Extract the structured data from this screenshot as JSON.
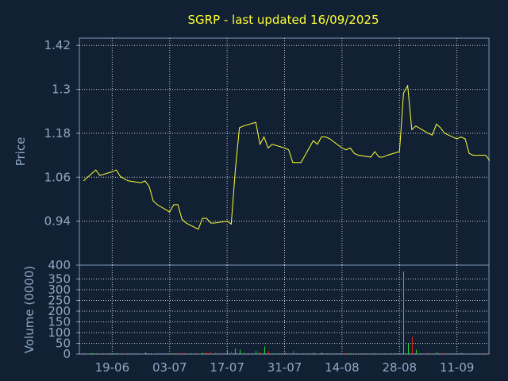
{
  "chart_data": [
    {
      "type": "line",
      "title": "SGRP - last updated 16/09/2025",
      "xlabel": "",
      "ylabel": "Price",
      "ylim": [
        0.82,
        1.44
      ],
      "y_ticks": [
        "1.42",
        "1.3",
        "1.18",
        "1.06",
        "0.94"
      ],
      "x_ticks": [
        "19-06",
        "03-07",
        "17-07",
        "31-07",
        "14-08",
        "28-08",
        "11-09"
      ],
      "grid": true,
      "series": [
        {
          "color": "#ffff33",
          "x": [
            "2025-06-09",
            "2025-06-10",
            "2025-06-11",
            "2025-06-12",
            "2025-06-13",
            "2025-06-16",
            "2025-06-17",
            "2025-06-18",
            "2025-06-19",
            "2025-06-20",
            "2025-06-23",
            "2025-06-24",
            "2025-06-25",
            "2025-06-26",
            "2025-06-27",
            "2025-06-30",
            "2025-07-01",
            "2025-07-02",
            "2025-07-03",
            "2025-07-04",
            "2025-07-07",
            "2025-07-08",
            "2025-07-09",
            "2025-07-10",
            "2025-07-11",
            "2025-07-14",
            "2025-07-15",
            "2025-07-16",
            "2025-07-17",
            "2025-07-18",
            "2025-07-21",
            "2025-07-22",
            "2025-07-23",
            "2025-07-24",
            "2025-07-25",
            "2025-07-28",
            "2025-07-29",
            "2025-07-30",
            "2025-07-31",
            "2025-08-01",
            "2025-08-04",
            "2025-08-05",
            "2025-08-06",
            "2025-08-07",
            "2025-08-08",
            "2025-08-11",
            "2025-08-12",
            "2025-08-13",
            "2025-08-14",
            "2025-08-15",
            "2025-08-18",
            "2025-08-19",
            "2025-08-20",
            "2025-08-21",
            "2025-08-22",
            "2025-08-25",
            "2025-08-26",
            "2025-08-27",
            "2025-08-28",
            "2025-08-29",
            "2025-09-01",
            "2025-09-02",
            "2025-09-03",
            "2025-09-04",
            "2025-09-05",
            "2025-09-08",
            "2025-09-09",
            "2025-09-10",
            "2025-09-11",
            "2025-09-12",
            "2025-09-15",
            "2025-09-16"
          ],
          "values": [
            1.05,
            1.06,
            1.07,
            1.08,
            1.065,
            1.075,
            1.08,
            1.062,
            1.055,
            1.05,
            1.045,
            1.05,
            1.035,
            0.995,
            0.985,
            0.965,
            0.985,
            0.985,
            0.945,
            0.935,
            0.918,
            0.948,
            0.948,
            0.935,
            0.935,
            0.94,
            0.932,
            1.08,
            1.195,
            1.2,
            1.21,
            1.15,
            1.17,
            1.14,
            1.15,
            1.14,
            1.135,
            1.1,
            1.1,
            1.1,
            1.16,
            1.15,
            1.17,
            1.17,
            1.165,
            1.14,
            1.135,
            1.14,
            1.125,
            1.12,
            1.115,
            1.13,
            1.115,
            1.115,
            1.12,
            1.13,
            1.29,
            1.31,
            1.19,
            1.2,
            1.18,
            1.175,
            1.205,
            1.195,
            1.18,
            1.165,
            1.17,
            1.165,
            1.125,
            1.12,
            1.12,
            1.105
          ]
        }
      ]
    },
    {
      "type": "bar",
      "xlabel": "",
      "ylabel": "Volume (0000)",
      "ylim": [
        0,
        400
      ],
      "y_ticks": [
        "400",
        "350",
        "300",
        "250",
        "200",
        "150",
        "100",
        "50",
        "0"
      ],
      "x_ticks": [
        "19-06",
        "03-07",
        "17-07",
        "31-07",
        "14-08",
        "28-08",
        "11-09"
      ],
      "grid": true,
      "up_color": "#22dd22",
      "down_color": "#dd2222",
      "values": [
        3,
        2,
        4,
        1,
        2,
        3,
        1,
        2,
        4,
        3,
        2,
        8,
        3,
        2,
        5,
        2,
        3,
        4,
        6,
        2,
        3,
        5,
        8,
        12,
        6,
        18,
        10,
        25,
        20,
        5,
        14,
        8,
        35,
        12,
        3,
        10,
        4,
        15,
        3,
        5,
        6,
        3,
        7,
        4,
        5,
        2,
        4,
        3,
        2,
        3,
        2,
        4,
        2,
        3,
        2,
        3,
        385,
        50,
        80,
        20,
        5,
        3,
        8,
        6,
        3,
        2,
        4,
        3,
        2,
        3,
        2,
        3
      ],
      "up": [
        true,
        false,
        true,
        true,
        false,
        true,
        true,
        false,
        false,
        false,
        false,
        true,
        false,
        false,
        false,
        false,
        true,
        false,
        false,
        false,
        false,
        true,
        false,
        false,
        false,
        true,
        false,
        true,
        true,
        true,
        true,
        false,
        true,
        false,
        true,
        false,
        false,
        false,
        false,
        false,
        true,
        false,
        true,
        false,
        false,
        false,
        false,
        true,
        false,
        false,
        false,
        true,
        false,
        false,
        true,
        true,
        true,
        true,
        false,
        true,
        false,
        false,
        true,
        false,
        false,
        false,
        true,
        false,
        false,
        false,
        false,
        false
      ]
    }
  ]
}
